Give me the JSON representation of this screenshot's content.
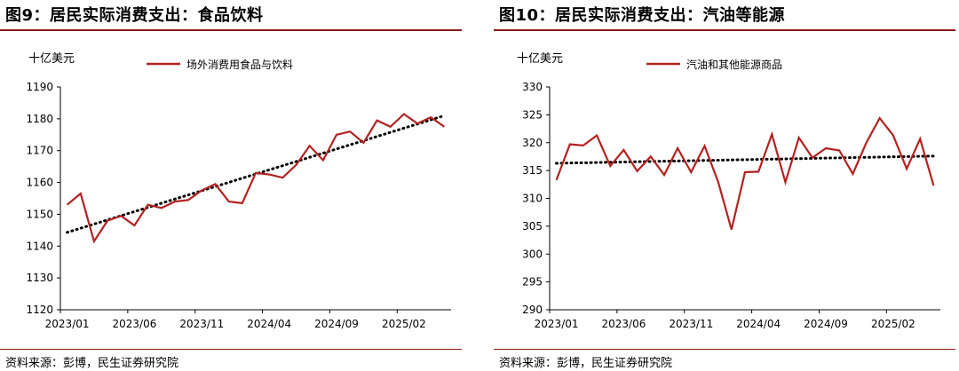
{
  "panels": [
    {
      "title": "图9：居民实际消费支出：食品饮料",
      "unit": "十亿美元",
      "source": "资料来源：彭博，民生证券研究院"
    },
    {
      "title": "图10：居民实际消费支出：汽油等能源",
      "unit": "十亿美元",
      "source": "资料来源：彭博，民生证券研究院"
    }
  ],
  "chart_data": [
    {
      "type": "line",
      "title": "图9：居民实际消费支出：食品饮料",
      "ylabel": "十亿美元",
      "ylim": [
        1120,
        1190
      ],
      "yticks": [
        1120,
        1130,
        1140,
        1150,
        1160,
        1170,
        1180,
        1190
      ],
      "x_tick_labels": [
        "2023/01",
        "2023/06",
        "2023/11",
        "2024/04",
        "2024/09",
        "2025/02"
      ],
      "legend_position": "top",
      "grid": false,
      "x": [
        "2023/01",
        "2023/02",
        "2023/03",
        "2023/04",
        "2023/05",
        "2023/06",
        "2023/07",
        "2023/08",
        "2023/09",
        "2023/10",
        "2023/11",
        "2023/12",
        "2024/01",
        "2024/02",
        "2024/03",
        "2024/04",
        "2024/05",
        "2024/06",
        "2024/07",
        "2024/08",
        "2024/09",
        "2024/10",
        "2024/11",
        "2024/12",
        "2025/01",
        "2025/02",
        "2025/03",
        "2025/04",
        "2025/05"
      ],
      "series": [
        {
          "name": "场外消费用食品与饮料",
          "color": "#b22222",
          "values": [
            1153,
            1156.5,
            1141.5,
            1148,
            1149.5,
            1146.5,
            1153,
            1152,
            1154,
            1154.5,
            1157.5,
            1159.5,
            1154,
            1153.5,
            1163,
            1162.5,
            1161.5,
            1165.5,
            1171.5,
            1167,
            1175,
            1176,
            1172.5,
            1179.5,
            1177.5,
            1181.5,
            1178.5,
            1180.5,
            1177.5
          ]
        }
      ],
      "trendline": {
        "style": "dotted",
        "color": "#000000",
        "start": 1144.3,
        "end": 1181.0
      }
    },
    {
      "type": "line",
      "title": "图10：居民实际消费支出：汽油等能源",
      "ylabel": "十亿美元",
      "ylim": [
        290,
        330
      ],
      "yticks": [
        290,
        295,
        300,
        305,
        310,
        315,
        320,
        325,
        330
      ],
      "x_tick_labels": [
        "2023/01",
        "2023/06",
        "2023/11",
        "2024/04",
        "2024/09",
        "2025/02"
      ],
      "legend_position": "top",
      "grid": false,
      "x": [
        "2023/01",
        "2023/02",
        "2023/03",
        "2023/04",
        "2023/05",
        "2023/06",
        "2023/07",
        "2023/08",
        "2023/09",
        "2023/10",
        "2023/11",
        "2023/12",
        "2024/01",
        "2024/02",
        "2024/03",
        "2024/04",
        "2024/05",
        "2024/06",
        "2024/07",
        "2024/08",
        "2024/09",
        "2024/10",
        "2024/11",
        "2024/12",
        "2025/01",
        "2025/02",
        "2025/03",
        "2025/04",
        "2025/05"
      ],
      "series": [
        {
          "name": "汽油和其他能源商品",
          "color": "#b22222",
          "values": [
            313.3,
            319.7,
            319.5,
            321.3,
            315.8,
            318.7,
            314.9,
            317.5,
            314.2,
            319.0,
            314.7,
            319.4,
            313.0,
            304.4,
            314.7,
            314.8,
            321.5,
            312.9,
            320.9,
            317.3,
            319.0,
            318.6,
            314.4,
            320.0,
            324.4,
            321.3,
            315.3,
            320.7,
            312.3
          ]
        }
      ],
      "trendline": {
        "style": "dotted",
        "color": "#000000",
        "start": 316.3,
        "end": 317.6
      }
    }
  ]
}
